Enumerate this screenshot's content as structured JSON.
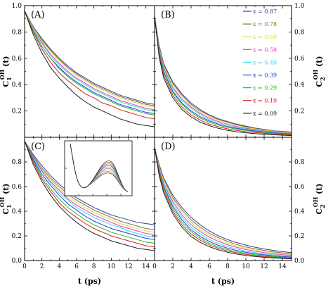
{
  "chart_data": {
    "type": "line",
    "x_tick_labels": [
      "0",
      "2",
      "4",
      "6",
      "8",
      "10",
      "12",
      "14"
    ],
    "y_tick_labels": [
      "0.0",
      "0.2",
      "0.4",
      "0.6",
      "0.8",
      "1.0"
    ],
    "xlim": [
      0,
      15
    ],
    "ylim": [
      0,
      1.0
    ],
    "x_axis_label": "t (ps)",
    "ylabels": {
      "A": "C1OH (t)",
      "B": "C2OH (t)",
      "C": "C1OH (t)",
      "D": "C2OH (t)"
    },
    "series_names": [
      "x = 0.87",
      "x = 0.78",
      "x = 0.68",
      "x = 0.58",
      "x = 0.48",
      "x = 0.39",
      "x = 0.29",
      "x = 0.19",
      "x = 0.09"
    ],
    "series_colors": [
      "#3a3aa0",
      "#7a7a30",
      "#e6d84a",
      "#e040c0",
      "#40d8e8",
      "#2040d8",
      "#20c020",
      "#d82020",
      "#202020"
    ],
    "legend_location": "panel B, right",
    "panels": [
      {
        "label": "(A)",
        "x": [
          0,
          1,
          2,
          3,
          4,
          5,
          6,
          7,
          8,
          9,
          10,
          11,
          12,
          13,
          14,
          15
        ],
        "series": [
          {
            "name": "x = 0.87",
            "values": [
              0.96,
              0.84,
              0.75,
              0.67,
              0.6,
              0.54,
              0.49,
              0.45,
              0.41,
              0.38,
              0.35,
              0.32,
              0.3,
              0.28,
              0.26,
              0.25
            ]
          },
          {
            "name": "x = 0.78",
            "values": [
              0.96,
              0.83,
              0.74,
              0.66,
              0.59,
              0.53,
              0.48,
              0.44,
              0.4,
              0.37,
              0.34,
              0.31,
              0.29,
              0.27,
              0.25,
              0.24
            ]
          },
          {
            "name": "x = 0.68",
            "values": [
              0.96,
              0.83,
              0.73,
              0.65,
              0.58,
              0.52,
              0.47,
              0.43,
              0.39,
              0.36,
              0.33,
              0.3,
              0.28,
              0.26,
              0.24,
              0.23
            ]
          },
          {
            "name": "x = 0.58",
            "values": [
              0.96,
              0.82,
              0.72,
              0.63,
              0.56,
              0.5,
              0.45,
              0.41,
              0.37,
              0.34,
              0.31,
              0.28,
              0.26,
              0.24,
              0.22,
              0.21
            ]
          },
          {
            "name": "x = 0.48",
            "values": [
              0.96,
              0.82,
              0.71,
              0.62,
              0.55,
              0.49,
              0.44,
              0.4,
              0.36,
              0.33,
              0.3,
              0.27,
              0.25,
              0.23,
              0.21,
              0.2
            ]
          },
          {
            "name": "x = 0.39",
            "values": [
              0.96,
              0.81,
              0.69,
              0.6,
              0.53,
              0.47,
              0.42,
              0.38,
              0.34,
              0.31,
              0.28,
              0.25,
              0.23,
              0.21,
              0.19,
              0.18
            ]
          },
          {
            "name": "x = 0.29",
            "values": [
              0.96,
              0.81,
              0.69,
              0.6,
              0.52,
              0.46,
              0.41,
              0.37,
              0.33,
              0.3,
              0.27,
              0.24,
              0.22,
              0.2,
              0.18,
              0.17
            ]
          },
          {
            "name": "x = 0.19",
            "values": [
              0.96,
              0.8,
              0.67,
              0.57,
              0.49,
              0.43,
              0.38,
              0.33,
              0.3,
              0.26,
              0.24,
              0.21,
              0.19,
              0.17,
              0.15,
              0.14
            ]
          },
          {
            "name": "x = 0.09",
            "values": [
              0.96,
              0.78,
              0.64,
              0.53,
              0.45,
              0.38,
              0.32,
              0.27,
              0.23,
              0.2,
              0.17,
              0.14,
              0.12,
              0.1,
              0.09,
              0.08
            ]
          }
        ]
      },
      {
        "label": "(B)",
        "x": [
          0,
          0.5,
          1,
          2,
          3,
          4,
          5,
          6,
          7,
          8,
          9,
          10,
          11,
          12,
          13,
          14,
          15
        ],
        "series": [
          {
            "name": "x = 0.87",
            "values": [
              0.92,
              0.7,
              0.56,
              0.42,
              0.33,
              0.26,
              0.21,
              0.17,
              0.14,
              0.12,
              0.1,
              0.085,
              0.07,
              0.06,
              0.05,
              0.045,
              0.04
            ]
          },
          {
            "name": "x = 0.78",
            "values": [
              0.92,
              0.69,
              0.55,
              0.41,
              0.32,
              0.25,
              0.2,
              0.165,
              0.135,
              0.115,
              0.095,
              0.08,
              0.068,
              0.058,
              0.048,
              0.042,
              0.037
            ]
          },
          {
            "name": "x = 0.68",
            "values": [
              0.92,
              0.68,
              0.54,
              0.4,
              0.31,
              0.24,
              0.19,
              0.155,
              0.13,
              0.11,
              0.09,
              0.075,
              0.063,
              0.054,
              0.045,
              0.039,
              0.034
            ]
          },
          {
            "name": "x = 0.58",
            "values": [
              0.92,
              0.67,
              0.53,
              0.38,
              0.29,
              0.23,
              0.18,
              0.145,
              0.12,
              0.1,
              0.082,
              0.069,
              0.058,
              0.049,
              0.041,
              0.035,
              0.031
            ]
          },
          {
            "name": "x = 0.48",
            "values": [
              0.92,
              0.66,
              0.52,
              0.37,
              0.28,
              0.22,
              0.17,
              0.135,
              0.11,
              0.09,
              0.075,
              0.063,
              0.053,
              0.045,
              0.038,
              0.032,
              0.028
            ]
          },
          {
            "name": "x = 0.39",
            "values": [
              0.92,
              0.65,
              0.5,
              0.35,
              0.26,
              0.2,
              0.155,
              0.125,
              0.1,
              0.082,
              0.068,
              0.057,
              0.048,
              0.04,
              0.034,
              0.029,
              0.025
            ]
          },
          {
            "name": "x = 0.29",
            "values": [
              0.92,
              0.64,
              0.49,
              0.34,
              0.25,
              0.19,
              0.145,
              0.115,
              0.092,
              0.075,
              0.062,
              0.052,
              0.043,
              0.036,
              0.031,
              0.026,
              0.022
            ]
          },
          {
            "name": "x = 0.19",
            "values": [
              0.92,
              0.63,
              0.47,
              0.32,
              0.23,
              0.17,
              0.13,
              0.1,
              0.08,
              0.064,
              0.052,
              0.043,
              0.036,
              0.03,
              0.025,
              0.021,
              0.018
            ]
          },
          {
            "name": "x = 0.09",
            "values": [
              0.92,
              0.61,
              0.45,
              0.3,
              0.21,
              0.155,
              0.115,
              0.088,
              0.068,
              0.053,
              0.042,
              0.034,
              0.028,
              0.023,
              0.019,
              0.016,
              0.013
            ]
          }
        ]
      },
      {
        "label": "(C)",
        "x": [
          0,
          1,
          2,
          3,
          4,
          5,
          6,
          7,
          8,
          9,
          10,
          11,
          12,
          13,
          14,
          15
        ],
        "series": [
          {
            "name": "x = 0.87",
            "values": [
              0.97,
              0.86,
              0.77,
              0.69,
              0.62,
              0.56,
              0.51,
              0.47,
              0.43,
              0.4,
              0.37,
              0.35,
              0.33,
              0.31,
              0.3,
              0.29
            ]
          },
          {
            "name": "x = 0.78",
            "values": [
              0.97,
              0.85,
              0.75,
              0.67,
              0.6,
              0.54,
              0.49,
              0.45,
              0.41,
              0.38,
              0.35,
              0.32,
              0.3,
              0.28,
              0.26,
              0.25
            ]
          },
          {
            "name": "x = 0.68",
            "values": [
              0.97,
              0.84,
              0.74,
              0.66,
              0.58,
              0.52,
              0.47,
              0.43,
              0.39,
              0.36,
              0.33,
              0.3,
              0.28,
              0.26,
              0.24,
              0.23
            ]
          },
          {
            "name": "x = 0.58",
            "values": [
              0.97,
              0.84,
              0.73,
              0.64,
              0.57,
              0.5,
              0.45,
              0.41,
              0.37,
              0.34,
              0.31,
              0.28,
              0.26,
              0.24,
              0.22,
              0.21
            ]
          },
          {
            "name": "x = 0.48",
            "values": [
              0.97,
              0.83,
              0.72,
              0.63,
              0.55,
              0.49,
              0.43,
              0.39,
              0.35,
              0.32,
              0.29,
              0.27,
              0.24,
              0.22,
              0.2,
              0.19
            ]
          },
          {
            "name": "x = 0.39",
            "values": [
              0.97,
              0.82,
              0.7,
              0.61,
              0.53,
              0.46,
              0.41,
              0.36,
              0.32,
              0.29,
              0.26,
              0.24,
              0.22,
              0.2,
              0.18,
              0.17
            ]
          },
          {
            "name": "x = 0.29",
            "values": [
              0.97,
              0.81,
              0.68,
              0.58,
              0.5,
              0.43,
              0.38,
              0.33,
              0.29,
              0.26,
              0.23,
              0.21,
              0.19,
              0.17,
              0.15,
              0.14
            ]
          },
          {
            "name": "x = 0.19",
            "values": [
              0.97,
              0.8,
              0.66,
              0.56,
              0.47,
              0.4,
              0.35,
              0.3,
              0.26,
              0.23,
              0.2,
              0.18,
              0.16,
              0.14,
              0.12,
              0.11
            ]
          },
          {
            "name": "x = 0.09",
            "values": [
              0.97,
              0.78,
              0.64,
              0.53,
              0.44,
              0.37,
              0.31,
              0.26,
              0.22,
              0.19,
              0.16,
              0.14,
              0.12,
              0.1,
              0.09,
              0.08
            ]
          }
        ]
      },
      {
        "label": "(D)",
        "x": [
          0,
          0.5,
          1,
          2,
          3,
          4,
          5,
          6,
          7,
          8,
          9,
          10,
          11,
          12,
          13,
          14,
          15
        ],
        "series": [
          {
            "name": "x = 0.87",
            "values": [
              0.92,
              0.78,
              0.67,
              0.53,
              0.43,
              0.35,
              0.29,
              0.24,
              0.2,
              0.17,
              0.145,
              0.125,
              0.108,
              0.094,
              0.082,
              0.072,
              0.064
            ]
          },
          {
            "name": "x = 0.78",
            "values": [
              0.92,
              0.77,
              0.66,
              0.51,
              0.41,
              0.33,
              0.27,
              0.22,
              0.185,
              0.155,
              0.13,
              0.11,
              0.095,
              0.082,
              0.071,
              0.062,
              0.055
            ]
          },
          {
            "name": "x = 0.68",
            "values": [
              0.92,
              0.76,
              0.65,
              0.5,
              0.39,
              0.31,
              0.25,
              0.205,
              0.17,
              0.14,
              0.118,
              0.1,
              0.085,
              0.073,
              0.063,
              0.055,
              0.048
            ]
          },
          {
            "name": "x = 0.58",
            "values": [
              0.92,
              0.75,
              0.63,
              0.48,
              0.37,
              0.29,
              0.235,
              0.19,
              0.155,
              0.128,
              0.106,
              0.089,
              0.075,
              0.064,
              0.055,
              0.047,
              0.041
            ]
          },
          {
            "name": "x = 0.48",
            "values": [
              0.92,
              0.74,
              0.62,
              0.46,
              0.35,
              0.27,
              0.215,
              0.17,
              0.138,
              0.113,
              0.093,
              0.077,
              0.064,
              0.054,
              0.046,
              0.039,
              0.034
            ]
          },
          {
            "name": "x = 0.39",
            "values": [
              0.92,
              0.73,
              0.6,
              0.44,
              0.33,
              0.25,
              0.195,
              0.155,
              0.123,
              0.1,
              0.081,
              0.067,
              0.055,
              0.046,
              0.039,
              0.033,
              0.028
            ]
          },
          {
            "name": "x = 0.29",
            "values": [
              0.92,
              0.72,
              0.59,
              0.42,
              0.31,
              0.235,
              0.18,
              0.14,
              0.11,
              0.088,
              0.071,
              0.058,
              0.047,
              0.039,
              0.033,
              0.027,
              0.023
            ]
          },
          {
            "name": "x = 0.19",
            "values": [
              0.92,
              0.71,
              0.57,
              0.4,
              0.29,
              0.215,
              0.165,
              0.127,
              0.099,
              0.078,
              0.062,
              0.05,
              0.04,
              0.033,
              0.027,
              0.022,
              0.018
            ]
          },
          {
            "name": "x = 0.09",
            "values": [
              0.92,
              0.69,
              0.55,
              0.38,
              0.27,
              0.195,
              0.147,
              0.112,
              0.086,
              0.067,
              0.052,
              0.041,
              0.033,
              0.026,
              0.021,
              0.017,
              0.014
            ]
          }
        ]
      }
    ]
  }
}
